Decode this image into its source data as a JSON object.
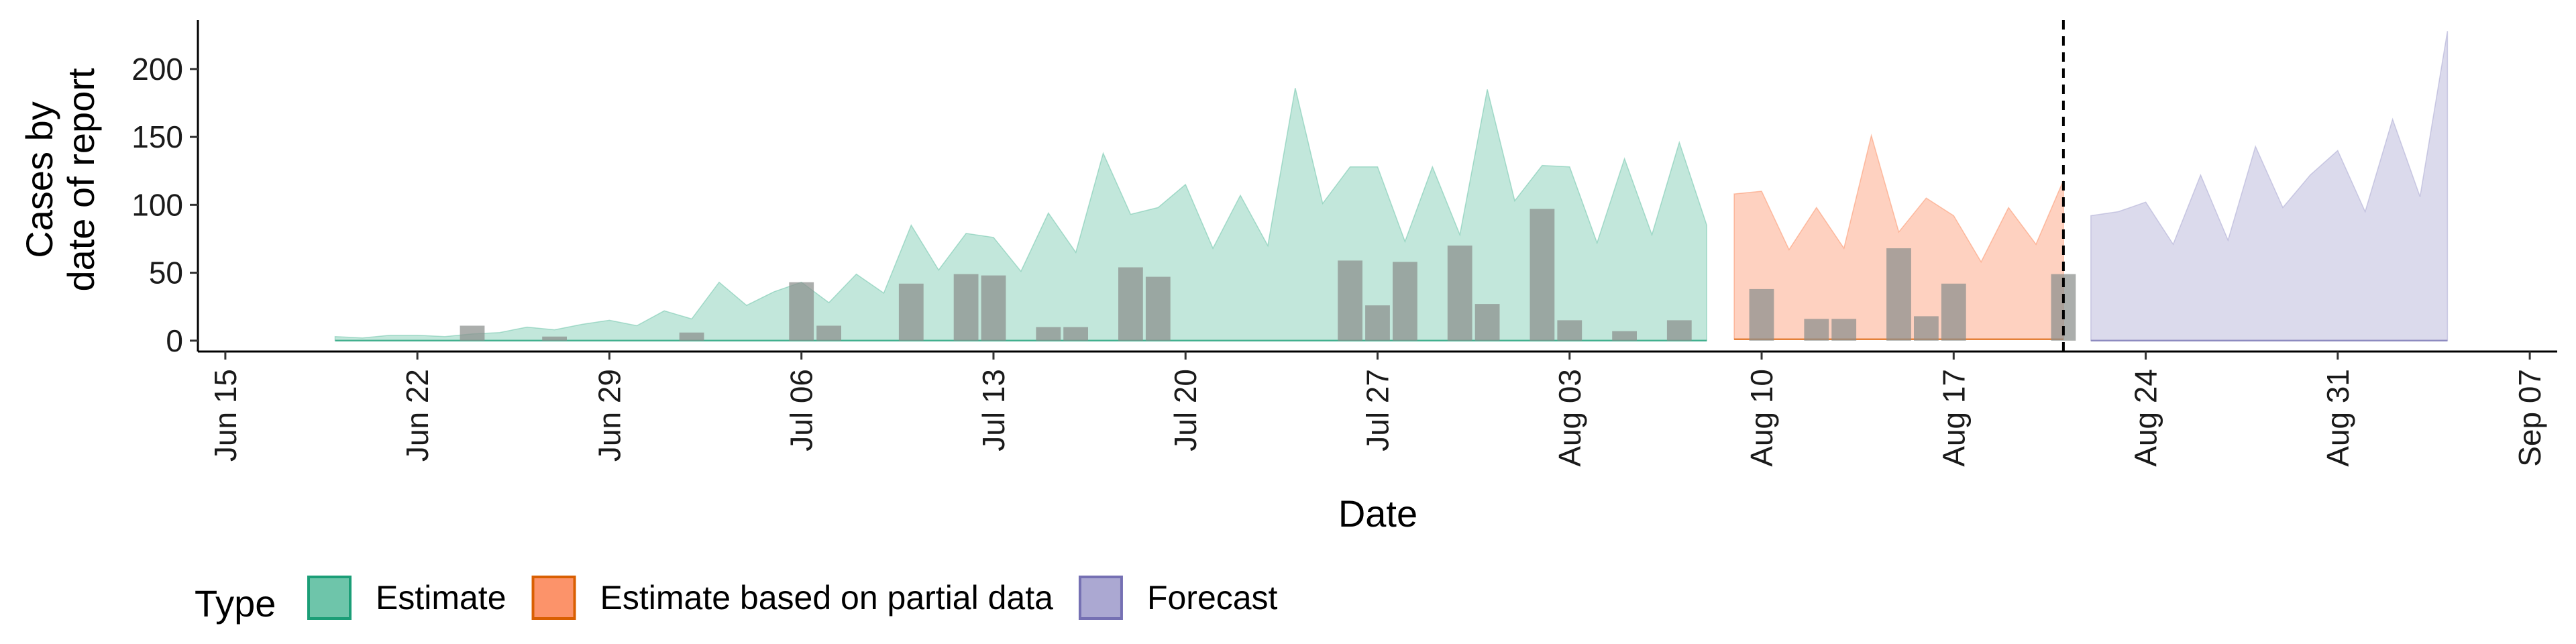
{
  "chart_data": {
    "type": "area",
    "xlabel": "Date",
    "ylabel_lines": [
      "Cases by",
      "date of report"
    ],
    "x_range": [
      "2020-06-14",
      "2020-09-08"
    ],
    "ylim": [
      -8,
      236
    ],
    "y_ticks": [
      0,
      50,
      100,
      150,
      200
    ],
    "x_ticks": [
      {
        "date": "2020-06-15",
        "label": "Jun 15"
      },
      {
        "date": "2020-06-22",
        "label": "Jun 22"
      },
      {
        "date": "2020-06-29",
        "label": "Jun 29"
      },
      {
        "date": "2020-07-06",
        "label": "Jul 06"
      },
      {
        "date": "2020-07-13",
        "label": "Jul 13"
      },
      {
        "date": "2020-07-20",
        "label": "Jul 20"
      },
      {
        "date": "2020-07-27",
        "label": "Jul 27"
      },
      {
        "date": "2020-08-03",
        "label": "Aug 03"
      },
      {
        "date": "2020-08-10",
        "label": "Aug 10"
      },
      {
        "date": "2020-08-17",
        "label": "Aug 17"
      },
      {
        "date": "2020-08-24",
        "label": "Aug 24"
      },
      {
        "date": "2020-08-31",
        "label": "Aug 31"
      },
      {
        "date": "2020-09-07",
        "label": "Sep 07"
      }
    ],
    "grid": false,
    "forecast_start_line": "2020-08-21",
    "legend": {
      "title": "Type",
      "position": "bottom-left",
      "entries": [
        {
          "label": "Estimate",
          "fill": "#66c2a5",
          "edge": "#1b9e77"
        },
        {
          "label": "Estimate based on partial data",
          "fill": "#fc8d62",
          "edge": "#d95f02"
        },
        {
          "label": "Forecast",
          "fill": "#a6a3d0",
          "edge": "#7570b3"
        }
      ]
    },
    "series": [
      {
        "name": "Estimate",
        "color": "#66c2a5",
        "edge": "#1b9e77",
        "x": [
          "2020-06-19",
          "2020-06-20",
          "2020-06-21",
          "2020-06-22",
          "2020-06-23",
          "2020-06-24",
          "2020-06-25",
          "2020-06-26",
          "2020-06-27",
          "2020-06-28",
          "2020-06-29",
          "2020-06-30",
          "2020-07-01",
          "2020-07-02",
          "2020-07-03",
          "2020-07-04",
          "2020-07-05",
          "2020-07-06",
          "2020-07-07",
          "2020-07-08",
          "2020-07-09",
          "2020-07-10",
          "2020-07-11",
          "2020-07-12",
          "2020-07-13",
          "2020-07-14",
          "2020-07-15",
          "2020-07-16",
          "2020-07-17",
          "2020-07-18",
          "2020-07-19",
          "2020-07-20",
          "2020-07-21",
          "2020-07-22",
          "2020-07-23",
          "2020-07-24",
          "2020-07-25",
          "2020-07-26",
          "2020-07-27",
          "2020-07-28",
          "2020-07-29",
          "2020-07-30",
          "2020-07-31",
          "2020-08-01",
          "2020-08-02",
          "2020-08-03",
          "2020-08-04",
          "2020-08-05",
          "2020-08-06",
          "2020-08-07",
          "2020-08-08"
        ],
        "upper": [
          3,
          2,
          4,
          4,
          3,
          5,
          6,
          10,
          8,
          12,
          15,
          11,
          22,
          16,
          43,
          26,
          36,
          43,
          28,
          49,
          35,
          85,
          52,
          79,
          76,
          51,
          94,
          65,
          138,
          93,
          98,
          115,
          68,
          107,
          70,
          186,
          101,
          128,
          128,
          73,
          128,
          78,
          185,
          103,
          129,
          128,
          72,
          134,
          78,
          146,
          85
        ],
        "lower": [
          0,
          0,
          0,
          0,
          0,
          0,
          0,
          0,
          0,
          0,
          0,
          0,
          0,
          0,
          0,
          0,
          0,
          0,
          0,
          0,
          0,
          0,
          0,
          0,
          0,
          0,
          0,
          0,
          0,
          0,
          0,
          0,
          0,
          0,
          0,
          0,
          0,
          0,
          0,
          0,
          0,
          0,
          0,
          0,
          0,
          0,
          0,
          0,
          0,
          0,
          0
        ]
      },
      {
        "name": "Estimate based on partial data",
        "color": "#fc8d62",
        "edge": "#d95f02",
        "x": [
          "2020-08-09",
          "2020-08-10",
          "2020-08-11",
          "2020-08-12",
          "2020-08-13",
          "2020-08-14",
          "2020-08-15",
          "2020-08-16",
          "2020-08-17",
          "2020-08-18",
          "2020-08-19",
          "2020-08-20",
          "2020-08-21"
        ],
        "upper": [
          108,
          110,
          67,
          98,
          68,
          151,
          80,
          105,
          92,
          58,
          98,
          71,
          118
        ],
        "lower": [
          1,
          1,
          1,
          1,
          1,
          1,
          1,
          1,
          1,
          1,
          1,
          1,
          1
        ]
      },
      {
        "name": "Forecast",
        "color": "#a6a3d0",
        "edge": "#7570b3",
        "x": [
          "2020-08-22",
          "2020-08-23",
          "2020-08-24",
          "2020-08-25",
          "2020-08-26",
          "2020-08-27",
          "2020-08-28",
          "2020-08-29",
          "2020-08-30",
          "2020-08-31",
          "2020-09-01",
          "2020-09-02",
          "2020-09-03",
          "2020-09-04"
        ],
        "upper": [
          92,
          95,
          102,
          71,
          122,
          74,
          143,
          98,
          122,
          140,
          95,
          163,
          106,
          228
        ],
        "lower": [
          0,
          0,
          0,
          0,
          0,
          0,
          0,
          0,
          0,
          0,
          0,
          0,
          0,
          0
        ]
      }
    ],
    "reported_cases": {
      "name": "Cases by date of report",
      "color": "#8a8f8c",
      "x": [
        "2020-06-24",
        "2020-06-27",
        "2020-07-02",
        "2020-07-06",
        "2020-07-07",
        "2020-07-10",
        "2020-07-12",
        "2020-07-13",
        "2020-07-15",
        "2020-07-16",
        "2020-07-18",
        "2020-07-19",
        "2020-07-26",
        "2020-07-27",
        "2020-07-28",
        "2020-07-30",
        "2020-07-31",
        "2020-08-02",
        "2020-08-03",
        "2020-08-05",
        "2020-08-07",
        "2020-08-10",
        "2020-08-12",
        "2020-08-13",
        "2020-08-15",
        "2020-08-16",
        "2020-08-17",
        "2020-08-21"
      ],
      "values": [
        11,
        3,
        6,
        43,
        11,
        42,
        49,
        48,
        10,
        10,
        54,
        47,
        59,
        26,
        58,
        70,
        27,
        97,
        15,
        7,
        15,
        38,
        16,
        16,
        68,
        18,
        42,
        49
      ]
    }
  }
}
